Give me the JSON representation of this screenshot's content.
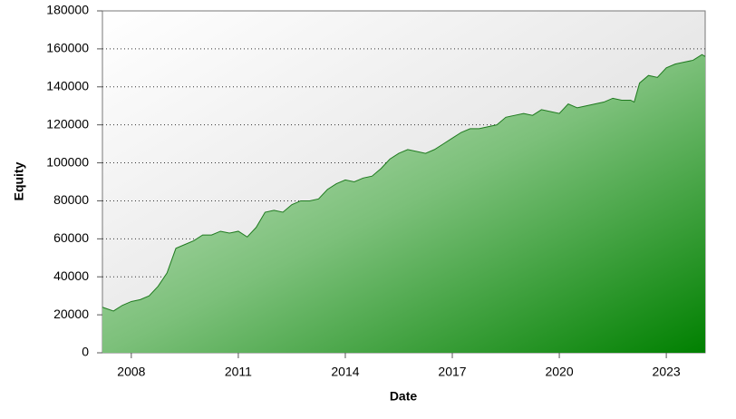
{
  "chart_data": {
    "type": "area",
    "x_label": "Date",
    "y_label": "Equity",
    "x": [
      2007.19,
      2007.5,
      2007.75,
      2008.0,
      2008.25,
      2008.5,
      2008.75,
      2009.0,
      2009.25,
      2009.5,
      2009.75,
      2010.0,
      2010.25,
      2010.5,
      2010.75,
      2011.0,
      2011.25,
      2011.5,
      2011.75,
      2012.0,
      2012.25,
      2012.5,
      2012.75,
      2013.0,
      2013.25,
      2013.5,
      2013.75,
      2014.0,
      2014.25,
      2014.5,
      2014.75,
      2015.0,
      2015.25,
      2015.5,
      2015.75,
      2016.0,
      2016.25,
      2016.5,
      2016.75,
      2017.0,
      2017.25,
      2017.5,
      2017.75,
      2018.0,
      2018.25,
      2018.5,
      2018.75,
      2019.0,
      2019.25,
      2019.5,
      2019.75,
      2020.0,
      2020.25,
      2020.5,
      2020.75,
      2021.0,
      2021.25,
      2021.5,
      2021.75,
      2022.0,
      2022.1,
      2022.25,
      2022.5,
      2022.75,
      2023.0,
      2023.25,
      2023.5,
      2023.75,
      2024.0,
      2024.09
    ],
    "values": [
      24000,
      22000,
      25000,
      27000,
      28000,
      30000,
      35000,
      42000,
      55000,
      57000,
      59000,
      62000,
      62000,
      64000,
      63000,
      64000,
      61000,
      66000,
      74000,
      75000,
      74000,
      78000,
      80000,
      80000,
      81000,
      86000,
      89000,
      91000,
      90000,
      92000,
      93000,
      97000,
      102000,
      105000,
      107000,
      106000,
      105000,
      107000,
      110000,
      113000,
      116000,
      118000,
      118000,
      119000,
      120000,
      124000,
      125000,
      126000,
      125000,
      128000,
      127000,
      126000,
      131000,
      129000,
      130000,
      131000,
      132000,
      134000,
      133000,
      133000,
      132000,
      142000,
      146000,
      145000,
      150000,
      152000,
      153000,
      154000,
      157000,
      156000
    ],
    "color": "#1f7a1f",
    "xlim": [
      2007.19,
      2024.09
    ],
    "xticks": [
      2008,
      2011,
      2014,
      2017,
      2020,
      2023
    ],
    "ylim": [
      0,
      180000
    ],
    "yticks": [
      0,
      20000,
      40000,
      60000,
      80000,
      100000,
      120000,
      140000,
      160000,
      180000
    ],
    "grid": true
  }
}
